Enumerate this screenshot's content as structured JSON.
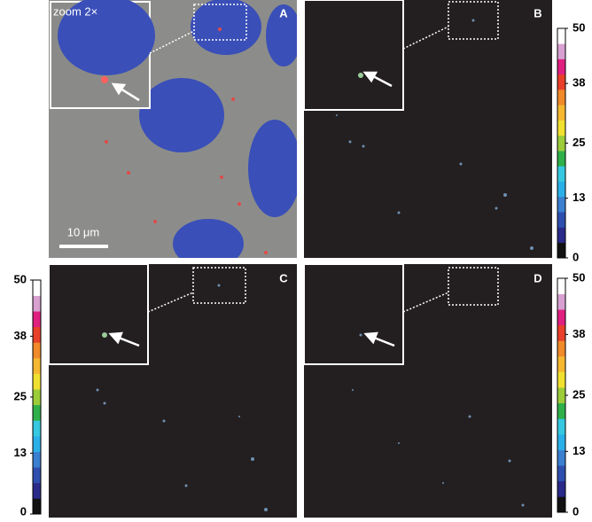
{
  "panels": [
    {
      "label": "A",
      "inset_label": "zoom 2×",
      "scale_bar": "10 μm"
    },
    {
      "label": "B"
    },
    {
      "label": "C"
    },
    {
      "label": "D"
    }
  ],
  "colorbar": {
    "lim": [
      0,
      50
    ],
    "ticks": [
      0,
      13,
      25,
      38,
      50
    ],
    "colors": [
      "#111111",
      "#2a2a8a",
      "#2e4fb0",
      "#3a7fd0",
      "#2ab0e8",
      "#35c8e0",
      "#2fb04a",
      "#9ccc3a",
      "#f0e030",
      "#f5b830",
      "#f08a2a",
      "#e8402a",
      "#e02080",
      "#d8a0d0",
      "#ffffff"
    ]
  }
}
